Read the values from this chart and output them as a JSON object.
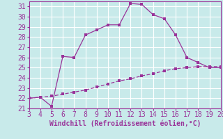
{
  "xlabel": "Windchill (Refroidissement éolien,°C)",
  "xlim": [
    3,
    20
  ],
  "ylim": [
    21,
    31.5
  ],
  "xticks": [
    3,
    4,
    5,
    6,
    7,
    8,
    9,
    10,
    11,
    12,
    13,
    14,
    15,
    16,
    17,
    18,
    19,
    20
  ],
  "yticks": [
    21,
    22,
    23,
    24,
    25,
    26,
    27,
    28,
    29,
    30,
    31
  ],
  "bg_color": "#c8eaea",
  "line_color": "#993399",
  "grid_color": "#ffffff",
  "line1_x": [
    3,
    4,
    5,
    6,
    7,
    8,
    9,
    10,
    11,
    12,
    13,
    14,
    15,
    16,
    17,
    18,
    19,
    20
  ],
  "line1_y": [
    22.0,
    22.1,
    21.2,
    26.1,
    26.0,
    28.2,
    28.7,
    29.2,
    29.2,
    31.3,
    31.2,
    30.2,
    29.8,
    28.2,
    26.0,
    25.5,
    25.0,
    25.0
  ],
  "line2_x": [
    3,
    4,
    5,
    6,
    7,
    8,
    9,
    10,
    11,
    12,
    13,
    14,
    15,
    16,
    17,
    18,
    19,
    20
  ],
  "line2_y": [
    22.0,
    22.1,
    22.2,
    22.4,
    22.6,
    22.8,
    23.1,
    23.4,
    23.7,
    23.9,
    24.2,
    24.4,
    24.7,
    24.9,
    25.0,
    25.1,
    25.1,
    25.1
  ],
  "tick_fontsize": 7,
  "xlabel_fontsize": 7
}
